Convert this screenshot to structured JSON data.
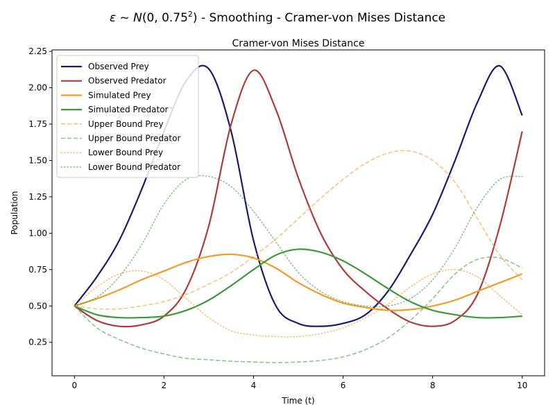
{
  "suptitle": {
    "prefix_symbol": "ε",
    "tilde": " ~ ",
    "dist": "N",
    "params": "(0, 0.75",
    "exp": "2",
    "params_close": ")",
    "rest": " - Smoothing - Cramer-von Mises Distance"
  },
  "chart_data": {
    "type": "line",
    "title": "Cramer-von Mises Distance",
    "xlabel": "Time (t)",
    "ylabel": "Population",
    "xlim": [
      -0.5,
      10.5
    ],
    "ylim": [
      0.02,
      2.26
    ],
    "xticks": [
      0,
      2,
      4,
      6,
      8,
      10
    ],
    "xtick_labels": [
      "0",
      "2",
      "4",
      "6",
      "8",
      "10"
    ],
    "yticks": [
      0.25,
      0.5,
      0.75,
      1.0,
      1.25,
      1.5,
      1.75,
      2.0,
      2.25
    ],
    "ytick_labels": [
      "0.25",
      "0.50",
      "0.75",
      "1.00",
      "1.25",
      "1.50",
      "1.75",
      "2.00",
      "2.25"
    ],
    "legend_position": "upper-left",
    "grid": false,
    "x": [
      0,
      0.5,
      1,
      1.5,
      2,
      2.5,
      3,
      3.5,
      4,
      4.5,
      5,
      5.5,
      6,
      6.5,
      7,
      7.5,
      8,
      8.5,
      9,
      9.5,
      10
    ],
    "series": [
      {
        "name": "Observed Prey",
        "color": "#191970",
        "style": "solid",
        "width": 2.2,
        "values": [
          0.5,
          0.7,
          0.95,
          1.3,
          1.7,
          2.05,
          2.13,
          1.7,
          0.95,
          0.5,
          0.38,
          0.36,
          0.38,
          0.44,
          0.6,
          0.85,
          1.13,
          1.5,
          1.9,
          2.15,
          1.81
        ]
      },
      {
        "name": "Observed Predator",
        "color": "#b03a3a",
        "style": "solid",
        "width": 2.2,
        "values": [
          0.5,
          0.4,
          0.36,
          0.37,
          0.43,
          0.62,
          1.05,
          1.75,
          2.12,
          1.85,
          1.38,
          1.0,
          0.75,
          0.6,
          0.48,
          0.39,
          0.36,
          0.4,
          0.58,
          1.05,
          1.7
        ]
      },
      {
        "name": "Simulated Prey",
        "color": "#f59a23",
        "style": "solid",
        "width": 2.2,
        "values": [
          0.5,
          0.55,
          0.61,
          0.68,
          0.74,
          0.8,
          0.84,
          0.855,
          0.83,
          0.76,
          0.66,
          0.58,
          0.52,
          0.49,
          0.47,
          0.475,
          0.5,
          0.54,
          0.6,
          0.66,
          0.72
        ]
      },
      {
        "name": "Simulated Predator",
        "color": "#3a9a3a",
        "style": "solid",
        "width": 2.2,
        "values": [
          0.5,
          0.44,
          0.42,
          0.42,
          0.43,
          0.47,
          0.54,
          0.64,
          0.75,
          0.85,
          0.89,
          0.87,
          0.81,
          0.72,
          0.62,
          0.53,
          0.47,
          0.44,
          0.42,
          0.42,
          0.43
        ]
      },
      {
        "name": "Upper Bound Prey",
        "color": "#f59a23",
        "style": "dashed",
        "width": 1.5,
        "opacity": 0.6,
        "values": [
          0.5,
          0.48,
          0.48,
          0.5,
          0.53,
          0.58,
          0.65,
          0.73,
          0.84,
          0.96,
          1.1,
          1.24,
          1.37,
          1.48,
          1.55,
          1.565,
          1.5,
          1.35,
          1.1,
          0.85,
          0.68
        ]
      },
      {
        "name": "Upper Bound Predator",
        "color": "#3a9a3a",
        "style": "dashed",
        "width": 1.5,
        "opacity": 0.6,
        "values": [
          0.5,
          0.35,
          0.27,
          0.21,
          0.17,
          0.14,
          0.13,
          0.12,
          0.115,
          0.11,
          0.115,
          0.125,
          0.15,
          0.2,
          0.28,
          0.4,
          0.55,
          0.72,
          0.82,
          0.83,
          0.76
        ]
      },
      {
        "name": "Lower Bound Prey",
        "color": "#f59a23",
        "style": "dotted",
        "width": 1.5,
        "opacity": 0.6,
        "values": [
          0.5,
          0.63,
          0.72,
          0.74,
          0.68,
          0.55,
          0.42,
          0.33,
          0.3,
          0.29,
          0.29,
          0.31,
          0.35,
          0.42,
          0.51,
          0.63,
          0.72,
          0.75,
          0.7,
          0.57,
          0.44
        ]
      },
      {
        "name": "Lower Bound Predator",
        "color": "#3a9a3a",
        "style": "dotted",
        "width": 1.5,
        "opacity": 0.6,
        "values": [
          0.5,
          0.56,
          0.7,
          0.92,
          1.2,
          1.37,
          1.39,
          1.32,
          1.15,
          0.94,
          0.73,
          0.6,
          0.53,
          0.5,
          0.5,
          0.55,
          0.68,
          0.9,
          1.18,
          1.37,
          1.39
        ]
      }
    ]
  }
}
